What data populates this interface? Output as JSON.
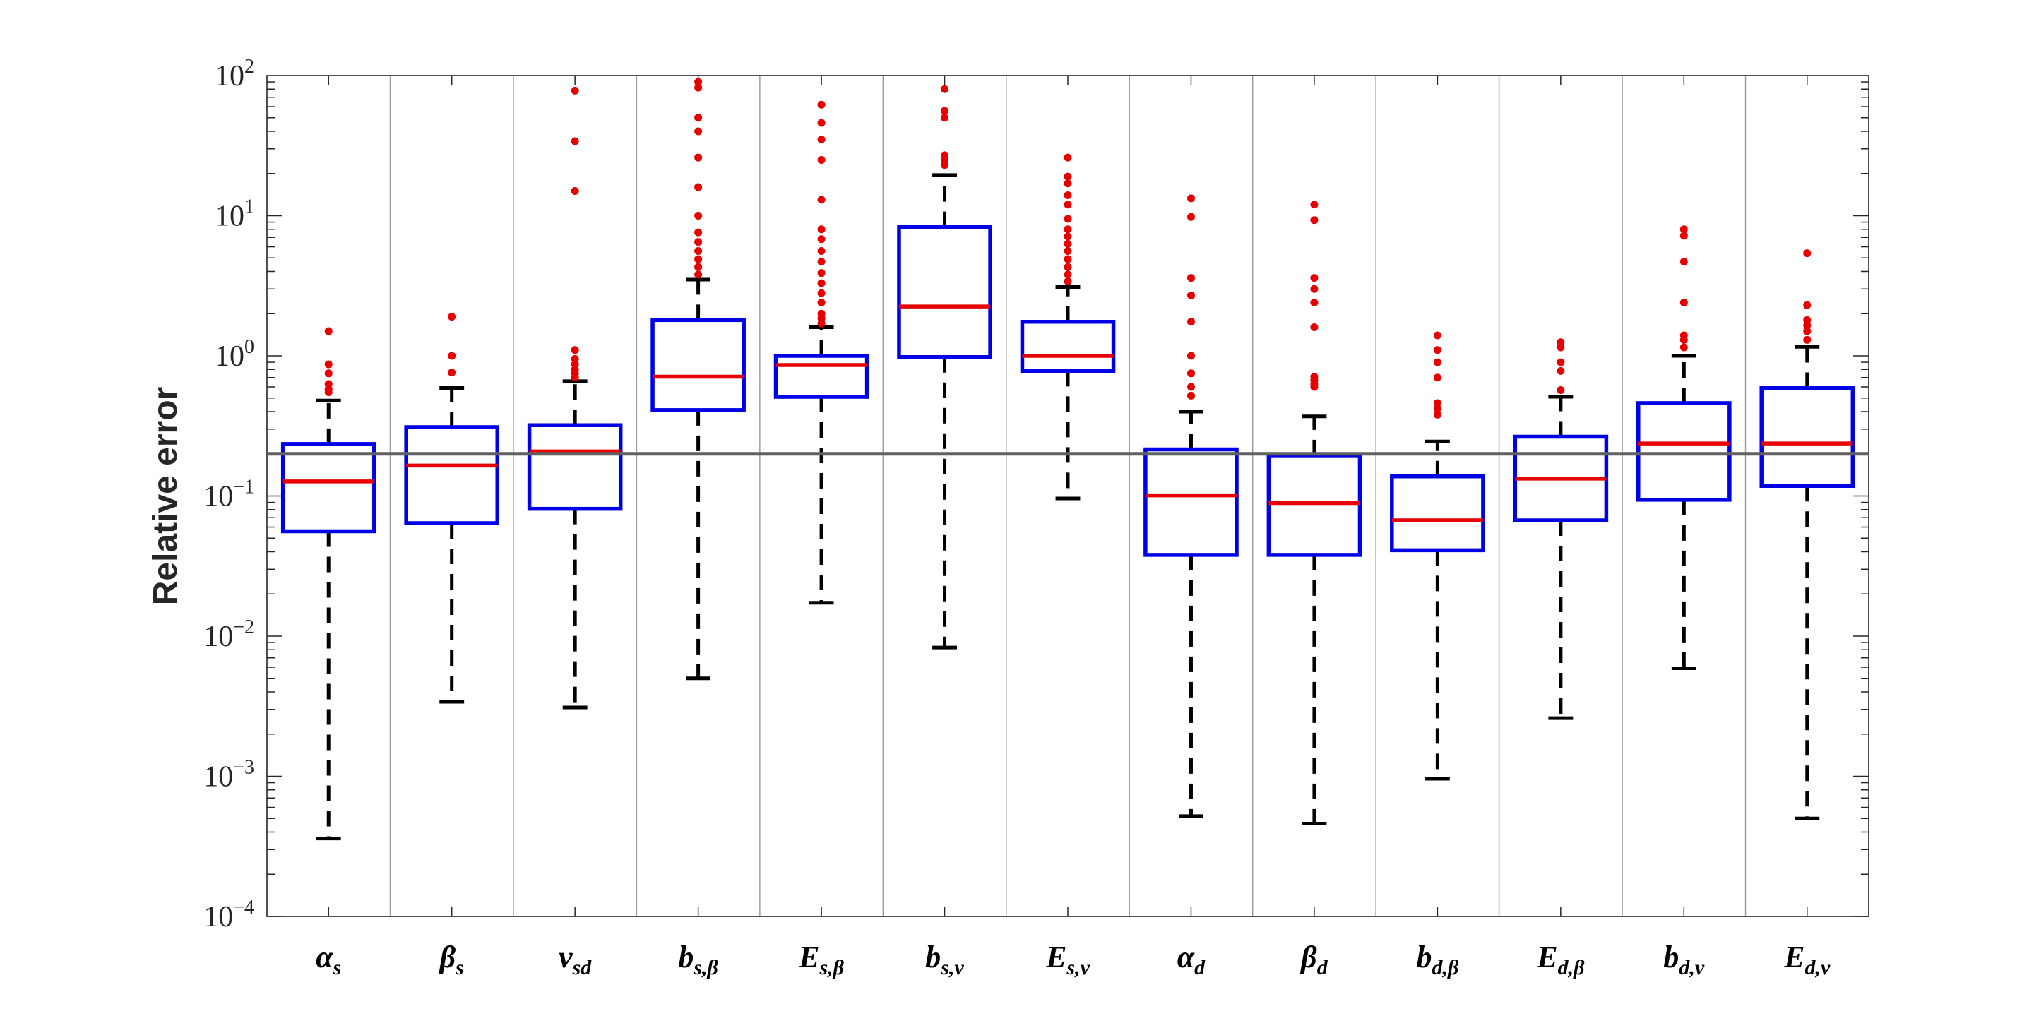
{
  "chart_data": {
    "type": "boxplot",
    "title": "",
    "xlabel": "",
    "ylabel": "Relative error",
    "yscale": "log",
    "ylim": [
      0.0001,
      100
    ],
    "y_tick_labels": [
      {
        "base": "10",
        "exp": "−4",
        "value": 0.0001
      },
      {
        "base": "10",
        "exp": "−3",
        "value": 0.001
      },
      {
        "base": "10",
        "exp": "−2",
        "value": 0.01
      },
      {
        "base": "10",
        "exp": "−1",
        "value": 0.1
      },
      {
        "base": "10",
        "exp": "0",
        "value": 1
      },
      {
        "base": "10",
        "exp": "1",
        "value": 10
      },
      {
        "base": "10",
        "exp": "2",
        "value": 100
      }
    ],
    "reference_line": 0.2,
    "grid": "vertical separators between categories",
    "colors": {
      "box": "#0000e6",
      "median": "#e60000",
      "whisker": "#000000",
      "outlier": "#e60000",
      "reference_line": "#606060",
      "separator": "#a0a0a0"
    },
    "categories": [
      {
        "main": "α",
        "sub": "s"
      },
      {
        "main": "β",
        "sub": "s"
      },
      {
        "main": "ν",
        "sub": "sd"
      },
      {
        "main": "b",
        "sub": "s,β"
      },
      {
        "main": "E",
        "sub": "s,β"
      },
      {
        "main": "b",
        "sub": "s,ν"
      },
      {
        "main": "E",
        "sub": "s,ν"
      },
      {
        "main": "α",
        "sub": "d"
      },
      {
        "main": "β",
        "sub": "d"
      },
      {
        "main": "b",
        "sub": "d,β"
      },
      {
        "main": "E",
        "sub": "d,β"
      },
      {
        "main": "b",
        "sub": "d,ν"
      },
      {
        "main": "E",
        "sub": "d,ν"
      }
    ],
    "boxes": [
      {
        "lower_whisker": 0.00036,
        "q1": 0.056,
        "median": 0.127,
        "q3": 0.235,
        "upper_whisker": 0.48,
        "outliers": [
          0.55,
          0.58,
          0.63,
          0.75,
          0.87,
          1.5
        ]
      },
      {
        "lower_whisker": 0.0034,
        "q1": 0.064,
        "median": 0.165,
        "q3": 0.31,
        "upper_whisker": 0.59,
        "outliers": [
          0.76,
          1.0,
          1.9
        ]
      },
      {
        "lower_whisker": 0.0031,
        "q1": 0.081,
        "median": 0.208,
        "q3": 0.32,
        "upper_whisker": 0.66,
        "outliers": [
          0.7,
          0.75,
          0.8,
          0.87,
          0.95,
          1.1,
          15,
          34,
          78
        ]
      },
      {
        "lower_whisker": 0.005,
        "q1": 0.41,
        "median": 0.71,
        "q3": 1.8,
        "upper_whisker": 3.5,
        "outliers": [
          3.8,
          4.3,
          4.9,
          5.6,
          6.5,
          7.6,
          10,
          16,
          26,
          40,
          50,
          82,
          90
        ]
      },
      {
        "lower_whisker": 0.0173,
        "q1": 0.51,
        "median": 0.86,
        "q3": 1.0,
        "upper_whisker": 1.6,
        "outliers": [
          1.7,
          1.85,
          2.0,
          2.4,
          2.8,
          3.3,
          3.9,
          4.7,
          5.6,
          6.8,
          8.0,
          13,
          25,
          35,
          46,
          62
        ]
      },
      {
        "lower_whisker": 0.0083,
        "q1": 0.98,
        "median": 2.25,
        "q3": 8.3,
        "upper_whisker": 19.5,
        "outliers": [
          23,
          25,
          27,
          50,
          56,
          80
        ]
      },
      {
        "lower_whisker": 0.096,
        "q1": 0.78,
        "median": 1.0,
        "q3": 1.75,
        "upper_whisker": 3.1,
        "outliers": [
          3.4,
          3.8,
          4.3,
          4.9,
          5.6,
          6.3,
          7.1,
          8.0,
          9.5,
          12,
          14,
          17,
          19,
          26
        ]
      },
      {
        "lower_whisker": 0.00052,
        "q1": 0.038,
        "median": 0.101,
        "q3": 0.215,
        "upper_whisker": 0.4,
        "outliers": [
          0.52,
          0.6,
          0.75,
          1.0,
          1.75,
          2.7,
          3.6,
          9.8,
          13.3
        ]
      },
      {
        "lower_whisker": 0.00046,
        "q1": 0.038,
        "median": 0.089,
        "q3": 0.195,
        "upper_whisker": 0.37,
        "outliers": [
          0.6,
          0.63,
          0.67,
          0.71,
          1.6,
          2.4,
          3.0,
          3.6,
          9.3,
          12
        ]
      },
      {
        "lower_whisker": 0.00096,
        "q1": 0.041,
        "median": 0.067,
        "q3": 0.138,
        "upper_whisker": 0.245,
        "outliers": [
          0.38,
          0.42,
          0.46,
          0.7,
          0.9,
          1.1,
          1.4
        ]
      },
      {
        "lower_whisker": 0.0026,
        "q1": 0.067,
        "median": 0.133,
        "q3": 0.265,
        "upper_whisker": 0.51,
        "outliers": [
          0.57,
          0.78,
          0.9,
          1.15,
          1.25
        ]
      },
      {
        "lower_whisker": 0.0059,
        "q1": 0.094,
        "median": 0.237,
        "q3": 0.46,
        "upper_whisker": 1.0,
        "outliers": [
          1.15,
          1.3,
          1.4,
          2.4,
          4.7,
          7.2,
          8.0
        ]
      },
      {
        "lower_whisker": 0.0005,
        "q1": 0.118,
        "median": 0.237,
        "q3": 0.59,
        "upper_whisker": 1.16,
        "outliers": [
          1.3,
          1.5,
          1.65,
          1.8,
          2.3,
          5.4
        ]
      }
    ]
  }
}
